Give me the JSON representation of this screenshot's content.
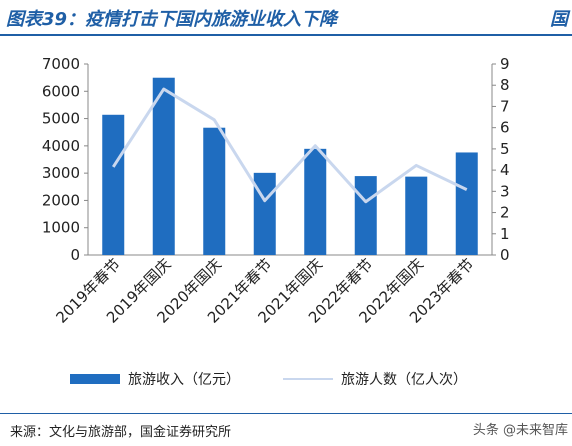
{
  "title": "图表39：疫情打击下国内旅游业收入下降",
  "title_corner": "国",
  "chart_data": {
    "type": "bar+line",
    "categories": [
      "2019年春节",
      "2019年国庆",
      "2020年国庆",
      "2021年春节",
      "2021年国庆",
      "2022年春节",
      "2022年国庆",
      "2023年春节"
    ],
    "series": [
      {
        "name": "旅游收入（亿元）",
        "type": "bar",
        "axis": "left",
        "values": [
          5139,
          6497,
          4665,
          3011,
          3891,
          2892,
          2872,
          3758
        ],
        "color": "#1f6dc0"
      },
      {
        "name": "旅游人数（亿人次）",
        "type": "line",
        "axis": "right",
        "values": [
          4.15,
          7.82,
          6.37,
          2.56,
          5.15,
          2.51,
          4.22,
          3.08
        ],
        "color": "#c9d7ee"
      }
    ],
    "y_left": {
      "min": 0,
      "max": 7000,
      "ticks": [
        0,
        1000,
        2000,
        3000,
        4000,
        5000,
        6000,
        7000
      ]
    },
    "y_right": {
      "min": 0,
      "max": 9,
      "ticks": [
        0,
        1,
        2,
        3,
        4,
        5,
        6,
        7,
        8,
        9
      ]
    },
    "legend_position": "bottom",
    "grid": false
  },
  "source": "来源：文化与旅游部，国金证券研究所",
  "watermark": "头条 @未来智库"
}
